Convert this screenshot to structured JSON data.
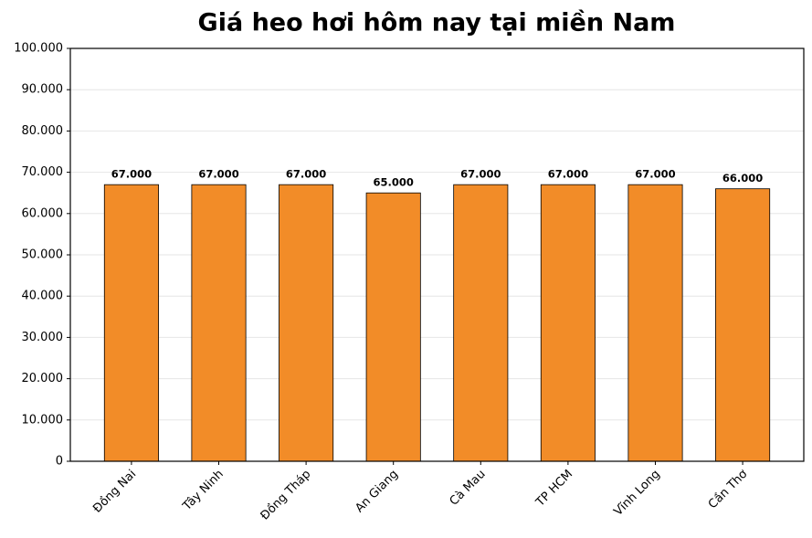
{
  "chart_data": {
    "type": "bar",
    "title": "Giá heo hơi hôm nay tại miền Nam",
    "categories": [
      "Đồng Nai",
      "Tây Ninh",
      "Đồng Tháp",
      "An Giang",
      "Cà Mau",
      "TP HCM",
      "Vĩnh Long",
      "Cần Thơ"
    ],
    "values": [
      67000,
      67000,
      67000,
      65000,
      67000,
      67000,
      67000,
      66000
    ],
    "value_labels": [
      "67.000",
      "67.000",
      "67.000",
      "65.000",
      "67.000",
      "67.000",
      "67.000",
      "66.000"
    ],
    "color": "#f28c28",
    "ylim": [
      0,
      100000
    ],
    "yticks": [
      0,
      {
        "value": 10000,
        "label": "10.000"
      },
      {
        "value": 20000,
        "label": "20.000"
      },
      {
        "value": 30000,
        "label": "30.000"
      },
      {
        "value": 40000,
        "label": "40.000"
      },
      {
        "value": 50000,
        "label": "50.000"
      },
      {
        "value": 60000,
        "label": "60.000"
      },
      {
        "value": 70000,
        "label": "70.000"
      },
      {
        "value": 80000,
        "label": "80.000"
      },
      {
        "value": 90000,
        "label": "90.000"
      },
      {
        "value": 100000,
        "label": "100.000"
      }
    ],
    "grid": true
  }
}
